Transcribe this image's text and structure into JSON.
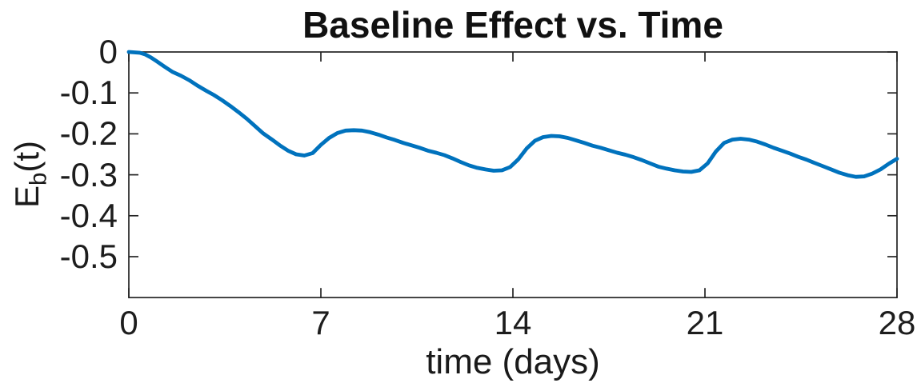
{
  "chart_data": {
    "type": "line",
    "title": "Baseline Effect vs. Time",
    "xlabel": "time (days)",
    "ylabel": "E_b(t)",
    "ylabel_parts": {
      "base": "E",
      "sub": "b",
      "suffix": "(t)"
    },
    "xlim": [
      0,
      28
    ],
    "ylim": [
      -0.6,
      0
    ],
    "xticks": [
      0,
      7,
      14,
      21,
      28
    ],
    "xtick_labels": [
      "0",
      "7",
      "14",
      "21",
      "28"
    ],
    "yticks": [
      0,
      -0.1,
      -0.2,
      -0.3,
      -0.4,
      -0.5
    ],
    "ytick_labels": [
      "0",
      "-0.1",
      "-0.2",
      "-0.3",
      "-0.4",
      "-0.5"
    ],
    "grid": false,
    "box": true,
    "tick_direction": "in",
    "legend": null,
    "axis_color": "#242424",
    "text_color": "#1a1a1a",
    "background_color": "#ffffff",
    "series": [
      {
        "name": "baseline effect E_b(t)",
        "color": "#0072BD",
        "line_width": 4.8,
        "x": [
          0,
          0.2,
          0.4,
          0.6,
          0.8,
          1.0,
          1.3,
          1.6,
          1.9,
          2.2,
          2.5,
          2.8,
          3.1,
          3.4,
          3.7,
          4.0,
          4.3,
          4.6,
          4.9,
          5.2,
          5.5,
          5.8,
          6.1,
          6.4,
          6.7,
          7.0,
          7.3,
          7.6,
          7.9,
          8.2,
          8.5,
          8.8,
          9.1,
          9.4,
          9.7,
          10.0,
          10.3,
          10.6,
          10.9,
          11.2,
          11.5,
          11.8,
          12.1,
          12.4,
          12.7,
          13.0,
          13.3,
          13.6,
          13.9,
          14.2,
          14.5,
          14.8,
          15.1,
          15.4,
          15.7,
          16.0,
          16.3,
          16.6,
          16.9,
          17.2,
          17.5,
          17.8,
          18.1,
          18.4,
          18.7,
          19.0,
          19.3,
          19.6,
          19.9,
          20.2,
          20.5,
          20.8,
          21.1,
          21.4,
          21.7,
          22.0,
          22.3,
          22.6,
          22.9,
          23.2,
          23.5,
          23.8,
          24.1,
          24.4,
          24.7,
          25.0,
          25.3,
          25.6,
          25.9,
          26.2,
          26.5,
          26.8,
          27.1,
          27.4,
          27.7,
          28.0
        ],
        "y": [
          0,
          -0.001,
          -0.002,
          -0.006,
          -0.013,
          -0.022,
          -0.036,
          -0.049,
          -0.058,
          -0.069,
          -0.082,
          -0.094,
          -0.105,
          -0.118,
          -0.132,
          -0.147,
          -0.163,
          -0.181,
          -0.199,
          -0.213,
          -0.228,
          -0.241,
          -0.25,
          -0.253,
          -0.247,
          -0.227,
          -0.21,
          -0.198,
          -0.192,
          -0.191,
          -0.192,
          -0.196,
          -0.202,
          -0.209,
          -0.215,
          -0.222,
          -0.228,
          -0.234,
          -0.241,
          -0.246,
          -0.252,
          -0.26,
          -0.269,
          -0.277,
          -0.283,
          -0.287,
          -0.29,
          -0.289,
          -0.281,
          -0.262,
          -0.236,
          -0.217,
          -0.208,
          -0.205,
          -0.206,
          -0.21,
          -0.216,
          -0.222,
          -0.229,
          -0.234,
          -0.24,
          -0.246,
          -0.251,
          -0.257,
          -0.264,
          -0.272,
          -0.28,
          -0.285,
          -0.289,
          -0.292,
          -0.293,
          -0.289,
          -0.272,
          -0.243,
          -0.222,
          -0.214,
          -0.212,
          -0.214,
          -0.219,
          -0.226,
          -0.234,
          -0.241,
          -0.248,
          -0.256,
          -0.263,
          -0.271,
          -0.279,
          -0.287,
          -0.295,
          -0.301,
          -0.305,
          -0.304,
          -0.297,
          -0.287,
          -0.273,
          -0.261
        ]
      }
    ]
  }
}
